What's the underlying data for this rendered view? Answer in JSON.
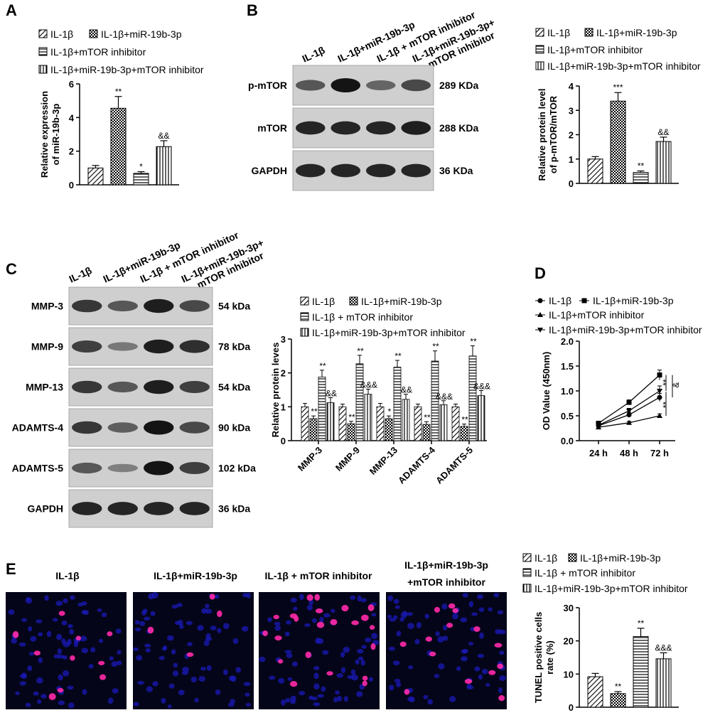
{
  "panel_labels": {
    "A": "A",
    "B": "B",
    "C": "C",
    "D": "D",
    "E": "E"
  },
  "groups": [
    "IL-1β",
    "IL-1β+miR-19b-3p",
    "IL-1β+mTOR inhibitor",
    "IL-1β+miR-19b-3p+mTOR inhibitor"
  ],
  "legend_ab": [
    "IL-1β",
    "IL-1β+miR-19b-3p",
    "IL-1β+mTOR inhibitor",
    "IL-1β+miR-19b-3p+mTOR inhibitor"
  ],
  "legend_ce": [
    "IL-1β",
    "IL-1β+miR-19b-3p",
    "IL-1β + mTOR inhibitor",
    "IL-1β+miR-19b-3p+mTOR inhibitor"
  ],
  "blot_b": {
    "lanes": [
      "IL-1β",
      "IL-1β+miR-19b-3p",
      "IL-1β + mTOR inhibitor",
      "IL-1β+miR-19b-3p+",
      "mTOR inhibitor"
    ],
    "rows": [
      {
        "name": "p-mTOR",
        "size": "289 KDa",
        "intensity": [
          0.6,
          1.0,
          0.5,
          0.7
        ]
      },
      {
        "name": "mTOR",
        "size": "288 KDa",
        "intensity": [
          0.9,
          0.9,
          0.9,
          0.95
        ]
      },
      {
        "name": "GAPDH",
        "size": "36 KDa",
        "intensity": [
          0.9,
          0.9,
          0.9,
          0.9
        ]
      }
    ]
  },
  "blot_c": {
    "lanes": [
      "IL-1β",
      "IL-1β+miR-19b-3p",
      "IL-1β + mTOR inhibitor",
      "IL-1β+miR-19b-3p+",
      "mTOR inhibitor"
    ],
    "rows": [
      {
        "name": "MMP-3",
        "size": "54 kDa",
        "intensity": [
          0.8,
          0.6,
          0.95,
          0.7
        ]
      },
      {
        "name": "MMP-9",
        "size": "78 kDa",
        "intensity": [
          0.75,
          0.35,
          0.95,
          0.85
        ]
      },
      {
        "name": "MMP-13",
        "size": "54 kDa",
        "intensity": [
          0.8,
          0.6,
          0.95,
          0.75
        ]
      },
      {
        "name": "ADAMTS-4",
        "size": "90 kDa",
        "intensity": [
          0.8,
          0.55,
          1.0,
          0.7
        ]
      },
      {
        "name": "ADAMTS-5",
        "size": "102 kDa",
        "intensity": [
          0.6,
          0.3,
          1.0,
          0.75
        ]
      },
      {
        "name": "GAPDH",
        "size": "36 kDa",
        "intensity": [
          0.9,
          0.9,
          0.9,
          0.9
        ]
      }
    ]
  },
  "images_e": {
    "labels": [
      "IL-1β",
      "IL-1β+miR-19b-3p",
      "IL-1β + mTOR inhibitor",
      "IL-1β+miR-19b-3p",
      "+mTOR inhibitor"
    ]
  },
  "chart_data": [
    {
      "id": "A",
      "type": "bar",
      "ylabel": "Relative expression of miR-19b-3p",
      "ylabel_lines": [
        "Relative expression",
        "of miR-19b-3p"
      ],
      "ylim": [
        0,
        6
      ],
      "yticks": [
        "0",
        "2",
        "4",
        "6"
      ],
      "values": [
        1.0,
        4.55,
        0.68,
        2.27
      ],
      "errors": [
        0.15,
        0.7,
        0.1,
        0.35
      ],
      "sig": [
        "",
        "**",
        "*",
        "&&"
      ]
    },
    {
      "id": "B",
      "type": "bar",
      "ylabel": "Relative protein level of p-mTOR/mTOR",
      "ylabel_lines": [
        "Relative protein level",
        "of p-mTOR/mTOR"
      ],
      "ylim": [
        0,
        4
      ],
      "yticks": [
        "0",
        "1",
        "2",
        "3",
        "4"
      ],
      "values": [
        1.0,
        3.38,
        0.45,
        1.72
      ],
      "errors": [
        0.1,
        0.35,
        0.06,
        0.18
      ],
      "sig": [
        "",
        "***",
        "**",
        "&&"
      ]
    },
    {
      "id": "C",
      "type": "bar",
      "ylabel": "Relative protein leves",
      "ylim": [
        0,
        3
      ],
      "yticks": [
        "0",
        "1",
        "2",
        "3"
      ],
      "categories": [
        "MMP-3",
        "MMP-9",
        "MMP-13",
        "ADAMTS-4",
        "ADAMTS-5"
      ],
      "series": [
        {
          "values": [
            1.0,
            1.0,
            1.0,
            1.0,
            1.0
          ],
          "errors": [
            0.1,
            0.08,
            0.1,
            0.08,
            0.08
          ],
          "sig": [
            "",
            "",
            "",
            "",
            ""
          ]
        },
        {
          "values": [
            0.65,
            0.5,
            0.65,
            0.48,
            0.42
          ],
          "errors": [
            0.08,
            0.07,
            0.08,
            0.08,
            0.07
          ],
          "sig": [
            "**",
            "**",
            "*",
            "**",
            "**"
          ]
        },
        {
          "values": [
            1.88,
            2.27,
            2.17,
            2.35,
            2.5
          ],
          "errors": [
            0.2,
            0.25,
            0.2,
            0.3,
            0.3
          ],
          "sig": [
            "**",
            "**",
            "**",
            "**",
            "**"
          ]
        },
        {
          "values": [
            1.12,
            1.37,
            1.22,
            1.06,
            1.33
          ],
          "errors": [
            0.15,
            0.15,
            0.15,
            0.12,
            0.15
          ],
          "sig": [
            "&&",
            "&&&",
            "&&",
            "&&&",
            "&&&"
          ]
        }
      ]
    },
    {
      "id": "D",
      "type": "line",
      "ylabel": "OD Value (450nm)",
      "ylim": [
        0,
        2.0
      ],
      "yticks": [
        "0.0",
        "0.5",
        "1.0",
        "1.5",
        "2.0"
      ],
      "categories": [
        "24 h",
        "48 h",
        "72 h"
      ],
      "series": [
        {
          "values": [
            0.3,
            0.52,
            0.87
          ],
          "errors": [
            0.03,
            0.05,
            0.08
          ]
        },
        {
          "values": [
            0.35,
            0.77,
            1.32
          ],
          "errors": [
            0.03,
            0.05,
            0.1
          ]
        },
        {
          "values": [
            0.27,
            0.36,
            0.5
          ],
          "errors": [
            0.02,
            0.03,
            0.04
          ]
        },
        {
          "values": [
            0.31,
            0.6,
            1.0
          ],
          "errors": [
            0.03,
            0.05,
            0.1
          ]
        }
      ],
      "sig": [
        "**",
        "&",
        "**"
      ]
    },
    {
      "id": "E",
      "type": "bar",
      "ylabel": "TUNEL positive cells rate (%)",
      "ylabel_lines": [
        "TUNEL positive cells",
        "rate (%)"
      ],
      "ylim": [
        0,
        30
      ],
      "yticks": [
        "0",
        "10",
        "20",
        "30"
      ],
      "values": [
        9.2,
        4.1,
        21.3,
        14.6
      ],
      "errors": [
        1.0,
        0.6,
        2.5,
        1.8
      ],
      "sig": [
        "",
        "**",
        "**",
        "&&&"
      ]
    }
  ]
}
